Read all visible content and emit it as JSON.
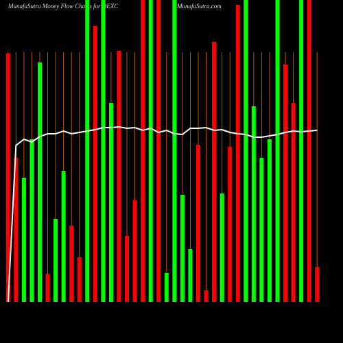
{
  "chart_data": {
    "type": "bar",
    "title": "MunafaSutra  Money Flow  Charts for DEXC",
    "subtitle": "MunafaSutra.com",
    "ylim": [
      0,
      440
    ],
    "categories": [
      null,
      null,
      null,
      null,
      null,
      null,
      null,
      null,
      null,
      null,
      null,
      null,
      null,
      null,
      null,
      null,
      null,
      null,
      null,
      null,
      null,
      null,
      null,
      null,
      null,
      null,
      null,
      null,
      null,
      null,
      null,
      null,
      null,
      null,
      null,
      null,
      null,
      null,
      null,
      null
    ],
    "values": [
      362,
      210,
      181,
      237,
      349,
      41,
      121,
      191,
      111,
      65,
      460,
      402,
      460,
      290,
      366,
      96,
      148,
      460,
      460,
      460,
      42,
      460,
      156,
      77,
      229,
      17,
      379,
      158,
      226,
      433,
      460,
      285,
      210,
      237,
      460,
      346,
      290,
      460,
      460,
      51
    ],
    "colors": [
      "#ff0000",
      "#ff0000",
      "#00ff00",
      "#00ff00",
      "#00ff00",
      "#ff0000",
      "#00ff00",
      "#00ff00",
      "#ff0000",
      "#ff0000",
      "#00ff00",
      "#ff0000",
      "#00ff00",
      "#00ff00",
      "#ff0000",
      "#ff0000",
      "#ff0000",
      "#ff0000",
      "#00ff00",
      "#ff0000",
      "#00ff00",
      "#00ff00",
      "#00ff00",
      "#00ff00",
      "#ff0000",
      "#ff0000",
      "#ff0000",
      "#00ff00",
      "#ff0000",
      "#ff0000",
      "#00ff00",
      "#00ff00",
      "#00ff00",
      "#00ff00",
      "#00ff00",
      "#ff0000",
      "#ff0000",
      "#00ff00",
      "#ff0000",
      "#ff0000"
    ],
    "line": {
      "color": "#ffffff",
      "values": [
        0,
        228,
        237,
        233,
        241,
        245,
        245,
        249,
        245,
        247,
        249,
        251,
        254,
        254,
        255,
        253,
        254,
        250,
        253,
        247,
        250,
        245,
        244,
        253,
        253,
        254,
        250,
        251,
        247,
        245,
        244,
        240,
        240,
        242,
        244,
        247,
        249,
        248,
        249,
        250
      ]
    },
    "grid_color": "#b35900"
  }
}
